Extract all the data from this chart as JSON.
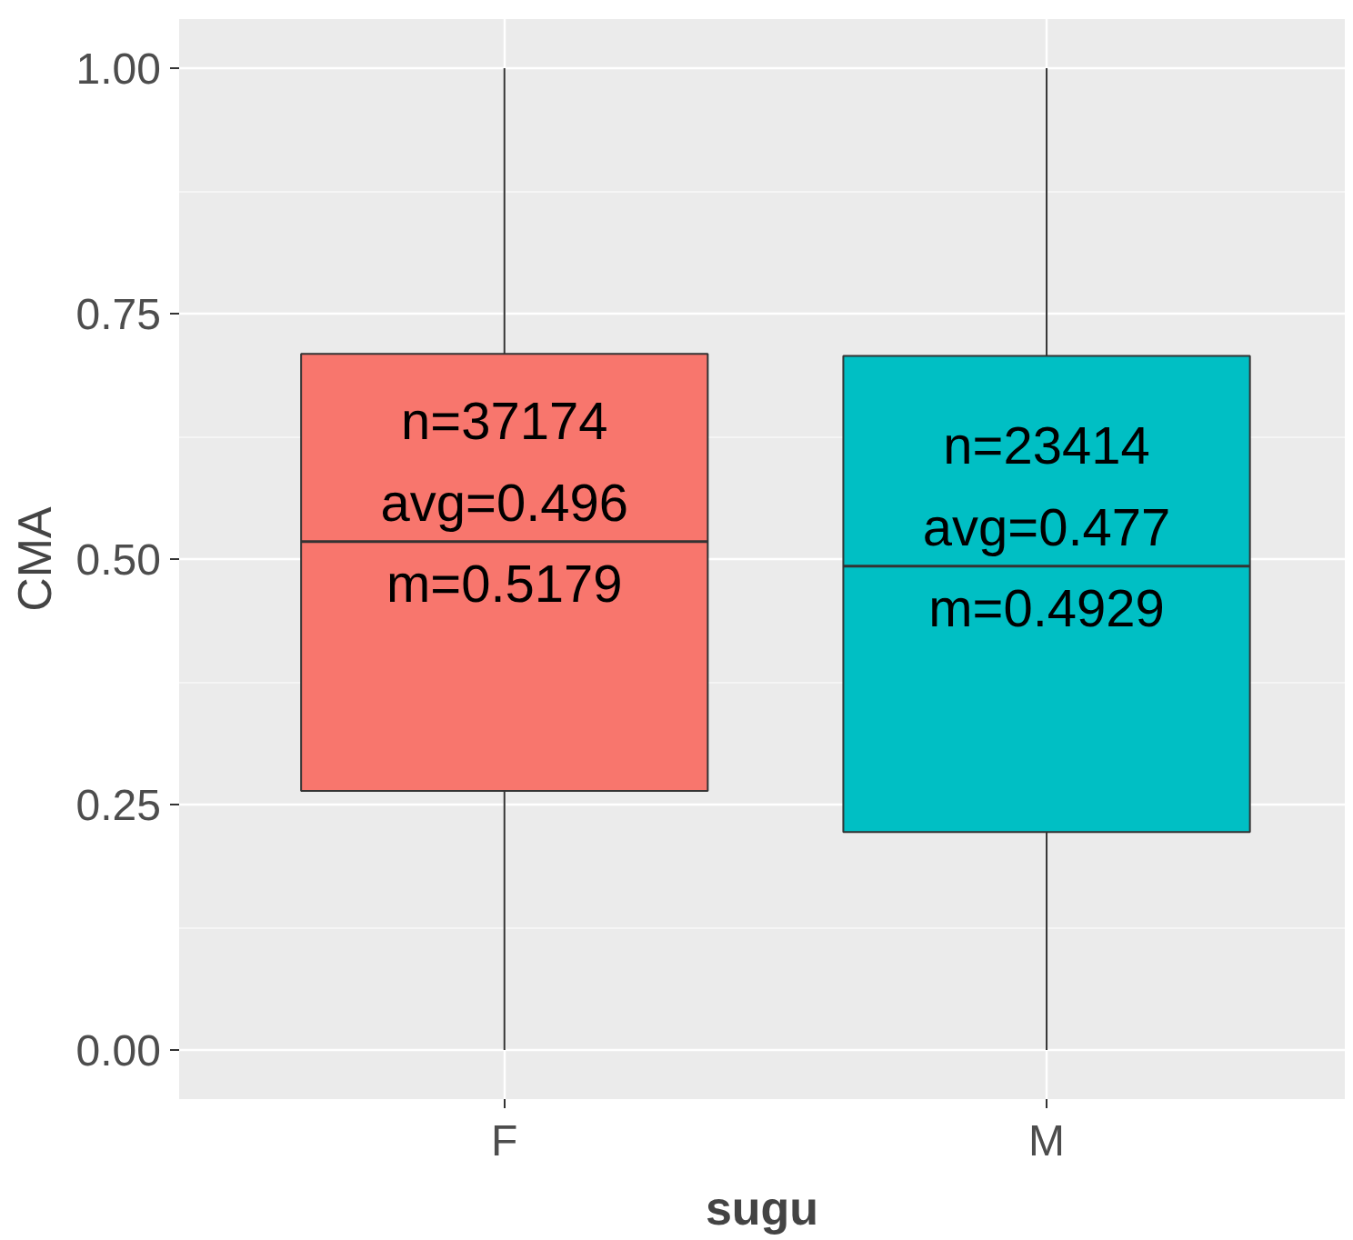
{
  "chart_data": {
    "type": "box",
    "xlabel": "sugu",
    "ylabel": "CMA",
    "categories": [
      "F",
      "M"
    ],
    "colors": [
      "#f8766d",
      "#00bfc4"
    ],
    "boxes": [
      {
        "low": 0,
        "q1": 0.264,
        "median": 0.5179,
        "q3": 0.709,
        "high": 1
      },
      {
        "low": 0,
        "q1": 0.222,
        "median": 0.4929,
        "q3": 0.707,
        "high": 1
      }
    ],
    "ylim": [
      -0.05,
      1.05
    ],
    "yticks": [
      {
        "value": 0,
        "label": "0.00"
      },
      {
        "value": 0.25,
        "label": "0.25"
      },
      {
        "value": 0.5,
        "label": "0.50"
      },
      {
        "value": 0.75,
        "label": "0.75"
      },
      {
        "value": 1,
        "label": "1.00"
      }
    ],
    "grid": true,
    "annotations": [
      "n=37174",
      "avg=0.496",
      "m=0.5179",
      "n=23414",
      "avg=0.477",
      "m=0.4929"
    ]
  }
}
